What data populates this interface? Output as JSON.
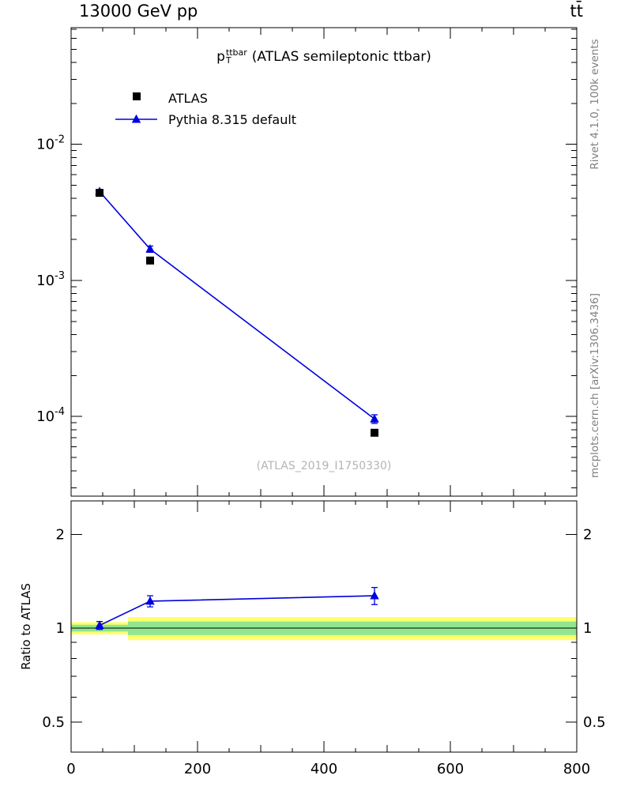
{
  "header": {
    "left": "13000 GeV pp",
    "right": "tt̄"
  },
  "main_title": {
    "base": "p",
    "sup": "ttbar",
    "sub": "T",
    "rest": "(ATLAS semileptonic ttbar)"
  },
  "legend": [
    {
      "label": "ATLAS",
      "marker": "filled-square",
      "color": "#000000"
    },
    {
      "label": "Pythia 8.315 default",
      "marker": "triangle-on-line",
      "color": "#0000dd"
    }
  ],
  "ratio_label": "Ratio to ATLAS",
  "watermark": "(ATLAS_2019_I1750330)",
  "side_notes": {
    "top_right": "Rivet 4.1.0, 100k events",
    "bottom_right": "mcplots.cern.ch [arXiv:1306.3436]"
  },
  "colors": {
    "accent_blue": "#0000dd",
    "atlas_black": "#000000",
    "band_outer_yellow": "#ffff6b",
    "band_inner_green": "#8fe68f",
    "frame": "#000000",
    "note_gray": "#808080",
    "watermark_gray": "#b4b4b4"
  },
  "chart_data": [
    {
      "type": "scatter",
      "panel": "main",
      "title": "pT^ttbar (ATLAS semileptonic ttbar)",
      "x": [
        45,
        125,
        480
      ],
      "series": [
        {
          "name": "ATLAS",
          "marker": "square",
          "color": "#000000",
          "values": [
            0.0044,
            0.0014,
            7.6e-05
          ],
          "errors": [
            0.00012,
            6e-05,
            4e-06
          ]
        },
        {
          "name": "Pythia 8.315 default",
          "marker": "triangle",
          "color": "#0000dd",
          "line": true,
          "values": [
            0.0045,
            0.0017,
            9.6e-05
          ],
          "errors": [
            0.00014,
            9e-05,
            7e-06
          ]
        }
      ],
      "xlim": [
        0,
        800
      ],
      "x_ticks": [
        0,
        200,
        400,
        600,
        800
      ],
      "ylog": true,
      "ylim": [
        2.6e-05,
        0.072
      ],
      "y_ticks_exp": [
        -2,
        -3,
        -4
      ]
    },
    {
      "type": "ratio",
      "panel": "ratio",
      "ylabel": "Ratio to ATLAS",
      "x": [
        45,
        125,
        480
      ],
      "series": [
        {
          "name": "Pythia 8.315 default",
          "marker": "triangle",
          "color": "#0000dd",
          "line": true,
          "values": [
            1.02,
            1.22,
            1.27
          ],
          "errors": [
            0.03,
            0.05,
            0.08
          ]
        }
      ],
      "bands": [
        {
          "x0": 0,
          "x1": 90,
          "yellow": [
            0.955,
            1.045
          ],
          "green": [
            0.975,
            1.025
          ]
        },
        {
          "x0": 90,
          "x1": 800,
          "yellow": [
            0.915,
            1.085
          ],
          "green": [
            0.95,
            1.05
          ]
        }
      ],
      "xlim": [
        0,
        800
      ],
      "x_ticks": [
        0,
        200,
        400,
        600,
        800
      ],
      "ylog": true,
      "ylim": [
        0.4,
        2.56
      ],
      "y_ticks": [
        0.5,
        1,
        2
      ],
      "y_minor_ticks": [
        0.4,
        0.6,
        0.7,
        0.8,
        0.9
      ]
    }
  ]
}
